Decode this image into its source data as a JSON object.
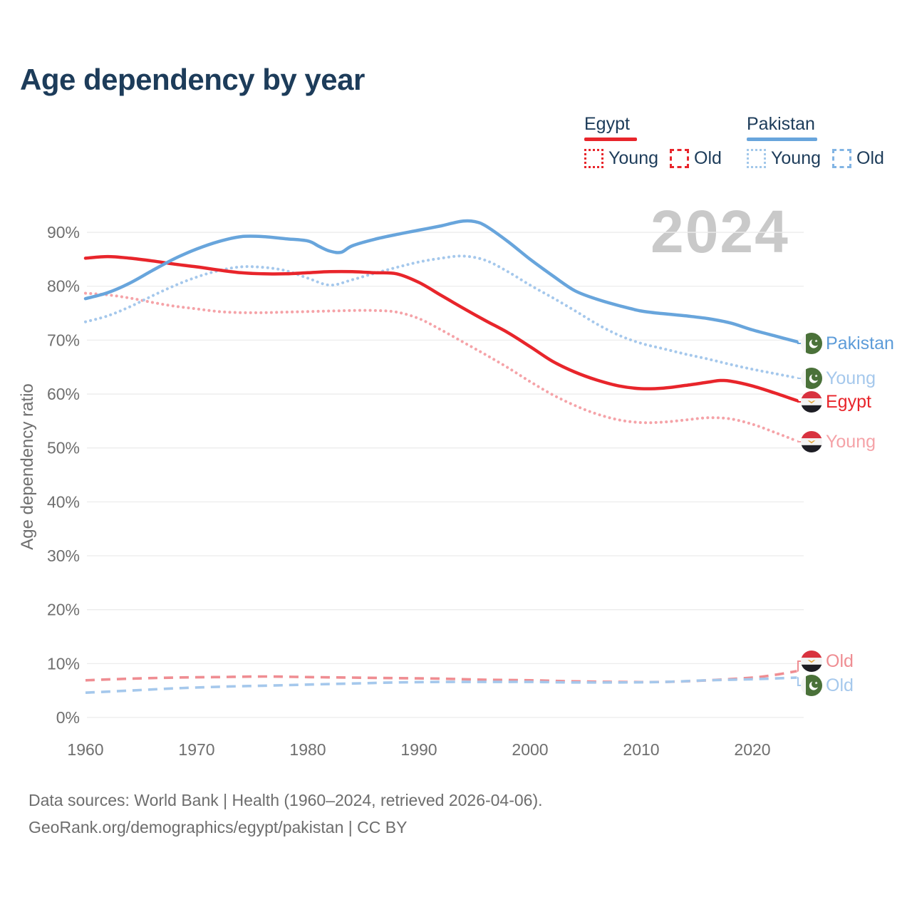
{
  "title": "Age dependency by year",
  "watermark": "2024",
  "legend": {
    "egypt": {
      "title": "Egypt",
      "young": "Young",
      "old": "Old"
    },
    "pakistan": {
      "title": "Pakistan",
      "young": "Young",
      "old": "Old"
    }
  },
  "colors": {
    "egypt": "#e8252b",
    "egypt_young": "#f5a3a8",
    "egypt_old": "#ef8d92",
    "pakistan": "#68a5dc",
    "pakistan_young": "#a5c8ec",
    "pakistan_old": "#a5c8ec",
    "title_text": "#1d3c5a",
    "axis_text": "#6f6f6f",
    "grid": "#ececec",
    "watermark": "#c9c9c9"
  },
  "end_labels": [
    {
      "id": "pakistan_total",
      "text": "Pakistan",
      "country": "pakistan"
    },
    {
      "id": "pakistan_young",
      "text": "Young",
      "country": "pakistan"
    },
    {
      "id": "egypt_total",
      "text": "Egypt",
      "country": "egypt"
    },
    {
      "id": "egypt_young",
      "text": "Young",
      "country": "egypt"
    },
    {
      "id": "egypt_old",
      "text": "Old",
      "country": "egypt"
    },
    {
      "id": "pakistan_old",
      "text": "Old",
      "country": "pakistan"
    }
  ],
  "footer": {
    "line1": "Data sources: World Bank | Health (1960–2024, retrieved 2026-04-06).",
    "line2": "GeoRank.org/demographics/egypt/pakistan | CC BY"
  },
  "chart_data": {
    "type": "line",
    "title": "Age dependency by year",
    "xlabel": "",
    "ylabel": "Age dependency ratio",
    "x_axis": {
      "ticks": [
        1960,
        1970,
        1980,
        1990,
        2000,
        2010,
        2020
      ],
      "range": [
        1960,
        2024
      ]
    },
    "y_axis": {
      "label": "Age dependency ratio",
      "ticks": [
        0,
        10,
        20,
        30,
        40,
        50,
        60,
        70,
        80,
        90
      ],
      "unit": "%",
      "range": [
        0,
        95
      ]
    },
    "grid": true,
    "legend_position": "top-right",
    "series": [
      {
        "id": "egypt_young",
        "name": "Egypt — Young",
        "style": "dotted",
        "color": "#f5a3a8",
        "x": [
          1960,
          1962,
          1964,
          1966,
          1968,
          1970,
          1972,
          1974,
          1976,
          1978,
          1980,
          1982,
          1984,
          1986,
          1988,
          1990,
          1992,
          1994,
          1996,
          1998,
          2000,
          2002,
          2004,
          2006,
          2008,
          2010,
          2012,
          2014,
          2016,
          2018,
          2020,
          2022,
          2024
        ],
        "values": [
          78.7,
          78.4,
          77.8,
          77.0,
          76.3,
          75.8,
          75.3,
          75.1,
          75.1,
          75.2,
          75.3,
          75.4,
          75.5,
          75.5,
          75.2,
          74.0,
          71.9,
          69.6,
          67.3,
          64.9,
          62.3,
          59.9,
          57.9,
          56.3,
          55.2,
          54.7,
          54.8,
          55.2,
          55.6,
          55.4,
          54.4,
          52.9,
          51.3
        ]
      },
      {
        "id": "egypt_old",
        "name": "Egypt — Old",
        "style": "dashed",
        "color": "#ef8d92",
        "x": [
          1960,
          1964,
          1968,
          1972,
          1976,
          1980,
          1984,
          1988,
          1992,
          1996,
          2000,
          2004,
          2008,
          2012,
          2016,
          2020,
          2022,
          2024
        ],
        "values": [
          6.9,
          7.2,
          7.4,
          7.5,
          7.6,
          7.5,
          7.4,
          7.3,
          7.2,
          7.0,
          6.9,
          6.7,
          6.6,
          6.6,
          6.9,
          7.4,
          7.9,
          8.6
        ]
      },
      {
        "id": "pakistan_young",
        "name": "Pakistan — Young",
        "style": "dotted",
        "color": "#a5c8ec",
        "x": [
          1960,
          1962,
          1964,
          1966,
          1968,
          1970,
          1972,
          1974,
          1976,
          1978,
          1980,
          1982,
          1984,
          1986,
          1988,
          1990,
          1992,
          1994,
          1996,
          1998,
          2000,
          2002,
          2004,
          2006,
          2008,
          2010,
          2012,
          2014,
          2016,
          2018,
          2020,
          2022,
          2024
        ],
        "values": [
          73.4,
          74.5,
          76.2,
          78.2,
          80.1,
          81.7,
          82.9,
          83.6,
          83.5,
          82.9,
          81.5,
          80.2,
          81.2,
          82.4,
          83.5,
          84.5,
          85.2,
          85.6,
          84.8,
          82.7,
          80.2,
          77.9,
          75.5,
          73.0,
          70.9,
          69.4,
          68.4,
          67.4,
          66.5,
          65.5,
          64.6,
          63.8,
          63.0
        ]
      },
      {
        "id": "pakistan_old",
        "name": "Pakistan — Old",
        "style": "dashed",
        "color": "#a5c8ec",
        "x": [
          1960,
          1964,
          1968,
          1972,
          1976,
          1980,
          1984,
          1988,
          1992,
          1996,
          2000,
          2004,
          2008,
          2012,
          2016,
          2020,
          2024
        ],
        "values": [
          4.6,
          5.0,
          5.4,
          5.7,
          5.9,
          6.1,
          6.3,
          6.5,
          6.6,
          6.6,
          6.6,
          6.5,
          6.5,
          6.6,
          6.9,
          7.1,
          7.4
        ]
      },
      {
        "id": "egypt_total",
        "name": "Egypt",
        "style": "solid",
        "color": "#e8252b",
        "x": [
          1960,
          1962,
          1964,
          1966,
          1968,
          1970,
          1972,
          1974,
          1976,
          1978,
          1980,
          1982,
          1984,
          1986,
          1988,
          1990,
          1992,
          1994,
          1996,
          1998,
          2000,
          2002,
          2004,
          2006,
          2008,
          2010,
          2012,
          2014,
          2016,
          2017,
          2018,
          2020,
          2022,
          2024
        ],
        "values": [
          85.2,
          85.5,
          85.2,
          84.7,
          84.1,
          83.6,
          83.0,
          82.5,
          82.3,
          82.3,
          82.5,
          82.7,
          82.7,
          82.5,
          82.3,
          80.7,
          78.3,
          75.9,
          73.6,
          71.4,
          68.8,
          66.1,
          64.1,
          62.6,
          61.5,
          61.0,
          61.1,
          61.6,
          62.2,
          62.5,
          62.4,
          61.5,
          60.2,
          58.8
        ]
      },
      {
        "id": "pakistan_total",
        "name": "Pakistan",
        "style": "solid",
        "color": "#68a5dc",
        "x": [
          1960,
          1962,
          1964,
          1966,
          1968,
          1970,
          1972,
          1974,
          1976,
          1978,
          1980,
          1981,
          1982,
          1983,
          1984,
          1986,
          1988,
          1990,
          1992,
          1993,
          1994,
          1995,
          1996,
          1998,
          2000,
          2002,
          2004,
          2006,
          2008,
          2010,
          2012,
          2014,
          2016,
          2018,
          2020,
          2022,
          2024
        ],
        "values": [
          77.7,
          78.8,
          80.6,
          82.9,
          85.1,
          86.9,
          88.3,
          89.2,
          89.2,
          88.8,
          88.4,
          87.4,
          86.5,
          86.3,
          87.5,
          88.7,
          89.6,
          90.4,
          91.2,
          91.7,
          92.1,
          92.0,
          91.2,
          88.3,
          85.0,
          82.0,
          79.2,
          77.6,
          76.4,
          75.4,
          74.9,
          74.5,
          74.0,
          73.2,
          71.9,
          70.8,
          69.7
        ]
      }
    ]
  }
}
